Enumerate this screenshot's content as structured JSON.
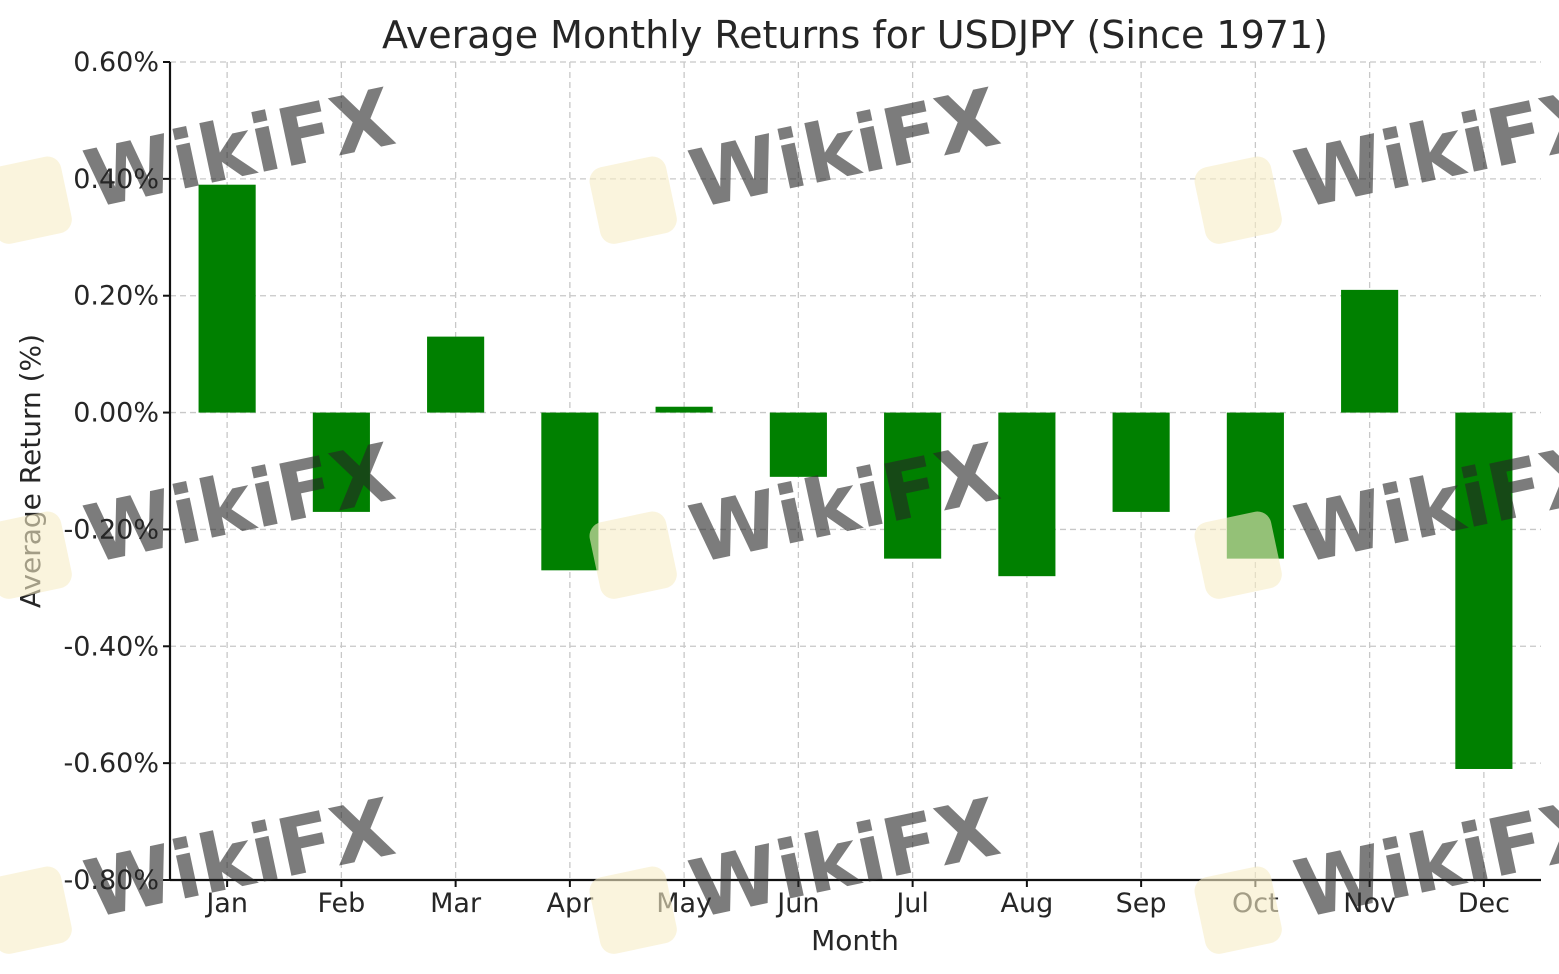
{
  "chart_data": {
    "type": "bar",
    "title": "Average Monthly Returns for USDJPY (Since 1971)",
    "xlabel": "Month",
    "ylabel": "Average Return (%)",
    "categories": [
      "Jan",
      "Feb",
      "Mar",
      "Apr",
      "May",
      "Jun",
      "Jul",
      "Aug",
      "Sep",
      "Oct",
      "Nov",
      "Dec"
    ],
    "values": [
      0.39,
      -0.17,
      0.13,
      -0.27,
      0.01,
      -0.11,
      -0.25,
      -0.28,
      -0.17,
      -0.25,
      0.21,
      -0.61
    ],
    "ylim": [
      -0.8,
      0.6
    ],
    "yticks": [
      0.6,
      0.4,
      0.2,
      0.0,
      -0.2,
      -0.4,
      -0.6,
      -0.8
    ],
    "ytick_labels": [
      "0.60%",
      "0.40%",
      "0.20%",
      "0.00%",
      "-0.20%",
      "-0.40%",
      "-0.60%",
      "-0.80%"
    ],
    "grid": true,
    "bar_color": "#008000"
  },
  "watermark": {
    "text": "WikiFX"
  }
}
